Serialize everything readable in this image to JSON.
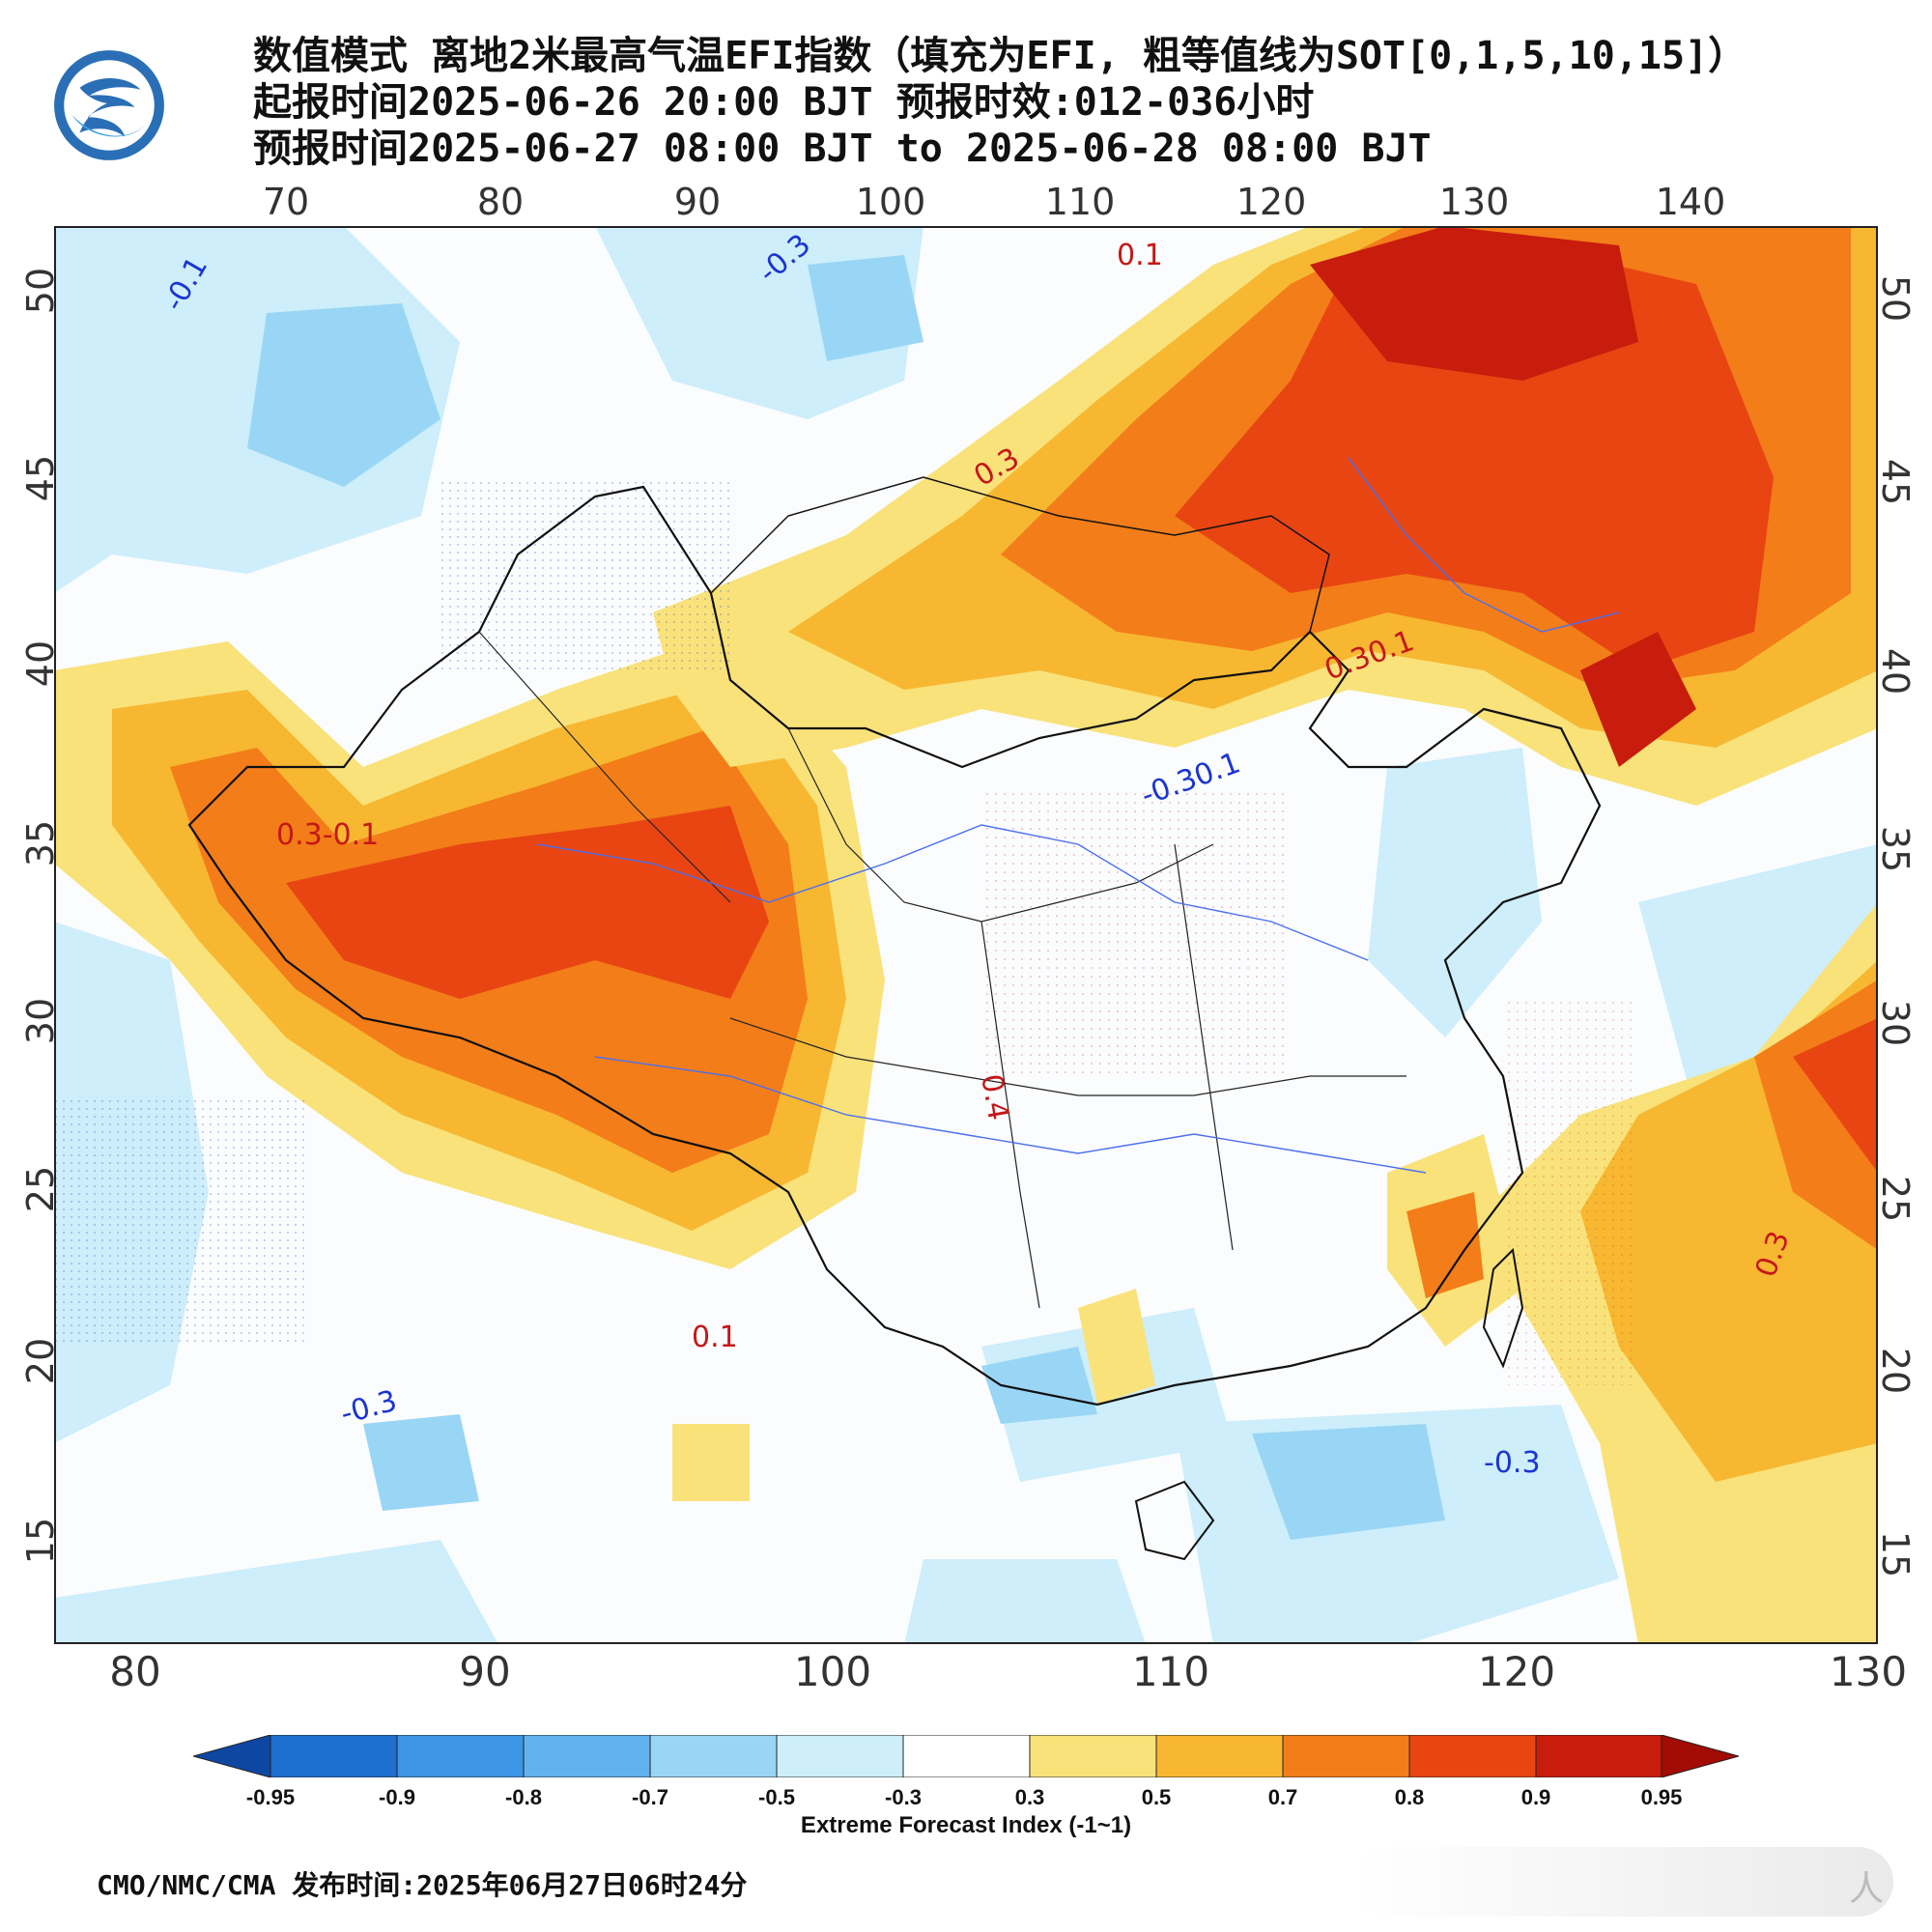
{
  "title": {
    "line1": "数值模式 离地2米最高气温EFI指数（填充为EFI, 粗等值线为SOT[0,1,5,10,15]）",
    "line2": "起报时间2025-06-26 20:00 BJT 预报时效:012-036小时",
    "line3": "预报时间2025-06-27 08:00 BJT to 2025-06-28 08:00 BJT"
  },
  "axes": {
    "top_lon": [
      "70",
      "80",
      "90",
      "100",
      "110",
      "120",
      "130",
      "140"
    ],
    "bottom_lon": [
      "80",
      "90",
      "100",
      "110",
      "120",
      "130"
    ],
    "left_lat": [
      "50",
      "45",
      "40",
      "35",
      "30",
      "25",
      "20",
      "15"
    ],
    "right_lat": [
      "50",
      "45",
      "40",
      "35",
      "30",
      "25",
      "20",
      "15"
    ]
  },
  "contour_labels": [
    "-0.1",
    "-0.3",
    "0.1",
    "0.3",
    "0.4",
    "0.30.1",
    "0.3-0.1",
    "-0.30.1",
    "-0.3",
    "0.1",
    "-0.3",
    "0.3"
  ],
  "colorbar": {
    "title": "Extreme Forecast Index (-1~1)",
    "labels": [
      "-0.95",
      "-0.9",
      "-0.8",
      "-0.7",
      "-0.5",
      "-0.3",
      "0.3",
      "0.5",
      "0.7",
      "0.8",
      "0.9",
      "0.95"
    ],
    "colors": [
      "#0d47a1",
      "#1e6fd0",
      "#3d95e6",
      "#62b2ef",
      "#99d6f5",
      "#cdeefa",
      "#ffffff",
      "#f9e27a",
      "#f7b731",
      "#f37d19",
      "#e84512",
      "#c81c0c",
      "#a30b05"
    ]
  },
  "footer": {
    "text": "CMO/NMC/CMA 发布时间:2025年06月27日06时24分"
  },
  "watermark": {
    "text": "人"
  }
}
